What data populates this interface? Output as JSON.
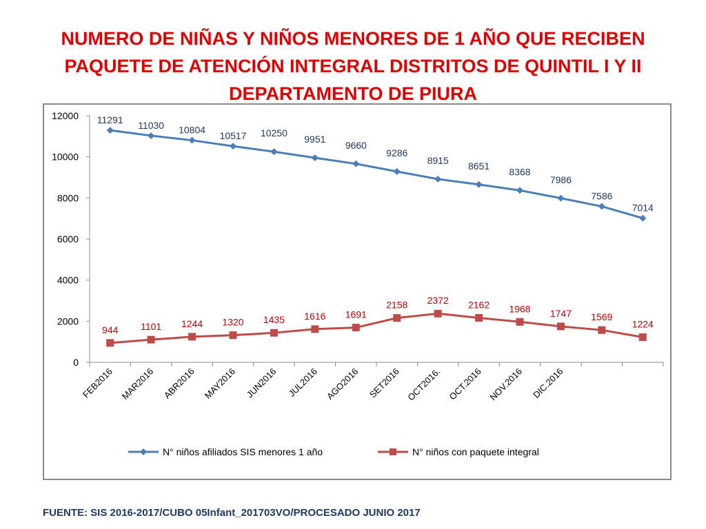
{
  "page": {
    "title_lines": [
      "NUMERO DE NIÑAS Y NIÑOS MENORES DE 1 AÑO QUE RECIBEN",
      "PAQUETE DE ATENCIÓN INTEGRAL  DISTRITOS DE QUINTIL I Y II",
      "DEPARTAMENTO DE PIURA"
    ],
    "source": "FUENTE: SIS 2016-2017/CUBO 05Infant_201703VO/PROCESADO JUNIO 2017"
  },
  "colors": {
    "title": "#e00000",
    "source": "#1f3864",
    "series_blue": "#4a7ebb",
    "series_red": "#be4b48",
    "label_blue": "#1f3864",
    "label_red": "#c00000"
  },
  "chart_data": {
    "type": "line",
    "categories": [
      "FEB2016",
      "MAR2016",
      "ABR2016",
      "MAY2016",
      "JUN2016",
      "JUL2016",
      "AGO2016",
      "SET2016",
      "OCT2016.",
      "OCT.2016",
      "NOV.2016",
      "DIC.2016",
      "",
      ""
    ],
    "ylim": [
      0,
      12000
    ],
    "yticks": [
      0,
      2000,
      4000,
      6000,
      8000,
      10000,
      12000
    ],
    "grid": false,
    "legend_position": "bottom",
    "series": [
      {
        "name": "N° niños afiliados SIS menores 1 año",
        "marker": "diamond",
        "values": [
          11291,
          11030,
          10804,
          10517,
          10250,
          9951,
          9660,
          9286,
          8915,
          8651,
          8368,
          7986,
          7586,
          7014
        ]
      },
      {
        "name": "N° niños con paquete integral",
        "marker": "square",
        "values": [
          944,
          1101,
          1244,
          1320,
          1435,
          1616,
          1691,
          2158,
          2372,
          2162,
          1968,
          1747,
          1569,
          1224
        ]
      }
    ]
  }
}
